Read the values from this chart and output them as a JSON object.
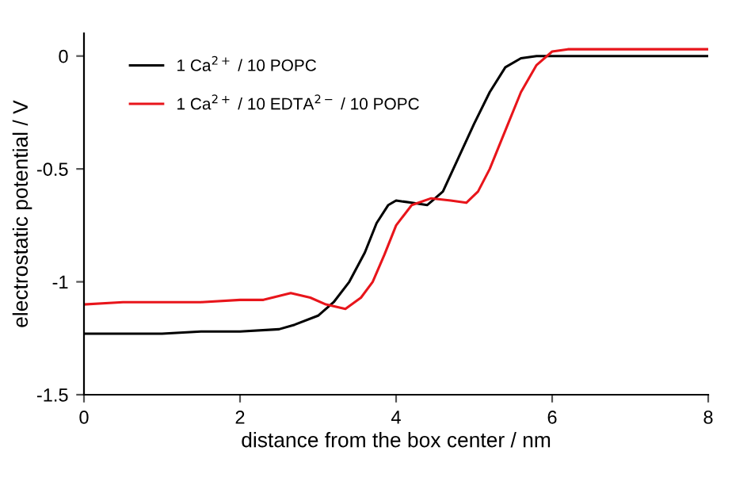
{
  "chart_data": {
    "type": "line",
    "xlabel": "distance from the box center / nm",
    "ylabel": "electrostatic potential / V",
    "xlim": [
      0,
      8
    ],
    "ylim": [
      -1.5,
      0.1
    ],
    "xticks": [
      0,
      2,
      4,
      6,
      8
    ],
    "yticks": [
      {
        "value": -1.5,
        "label": "-1.5"
      },
      {
        "value": -1,
        "label": "-1"
      },
      {
        "value": -0.5,
        "label": "-0.5"
      },
      0
    ],
    "grid": false,
    "legend": "top left",
    "marker": "none",
    "line_style": "solid",
    "series": [
      {
        "name": "1 Ca$^{2+}$ / 10 POPC",
        "color": "#000000",
        "x": [
          0,
          0.5,
          1,
          1.5,
          2,
          2.5,
          2.7,
          3.0,
          3.2,
          3.4,
          3.6,
          3.75,
          3.9,
          4.0,
          4.2,
          4.4,
          4.6,
          4.8,
          5.0,
          5.2,
          5.4,
          5.6,
          5.8,
          6.0,
          7,
          8
        ],
        "values": [
          -1.23,
          -1.23,
          -1.23,
          -1.22,
          -1.22,
          -1.21,
          -1.19,
          -1.15,
          -1.09,
          -1.0,
          -0.87,
          -0.74,
          -0.66,
          -0.64,
          -0.65,
          -0.66,
          -0.6,
          -0.45,
          -0.3,
          -0.16,
          -0.05,
          -0.01,
          0.0,
          0.0,
          0.0,
          0.0
        ]
      },
      {
        "name": "1 Ca$^{2+}$ / 10 EDTA$^{2−}$ / 10 POPC",
        "color": "#e8151b",
        "x": [
          0,
          0.5,
          1,
          1.5,
          2,
          2.3,
          2.65,
          2.9,
          3.1,
          3.35,
          3.55,
          3.7,
          3.85,
          4.0,
          4.2,
          4.45,
          4.7,
          4.9,
          5.05,
          5.2,
          5.4,
          5.6,
          5.8,
          6.0,
          6.2,
          7,
          8
        ],
        "values": [
          -1.1,
          -1.09,
          -1.09,
          -1.09,
          -1.08,
          -1.08,
          -1.05,
          -1.07,
          -1.1,
          -1.12,
          -1.07,
          -1.0,
          -0.88,
          -0.75,
          -0.66,
          -0.63,
          -0.64,
          -0.65,
          -0.6,
          -0.5,
          -0.33,
          -0.16,
          -0.04,
          0.02,
          0.03,
          0.03,
          0.03
        ]
      }
    ]
  }
}
